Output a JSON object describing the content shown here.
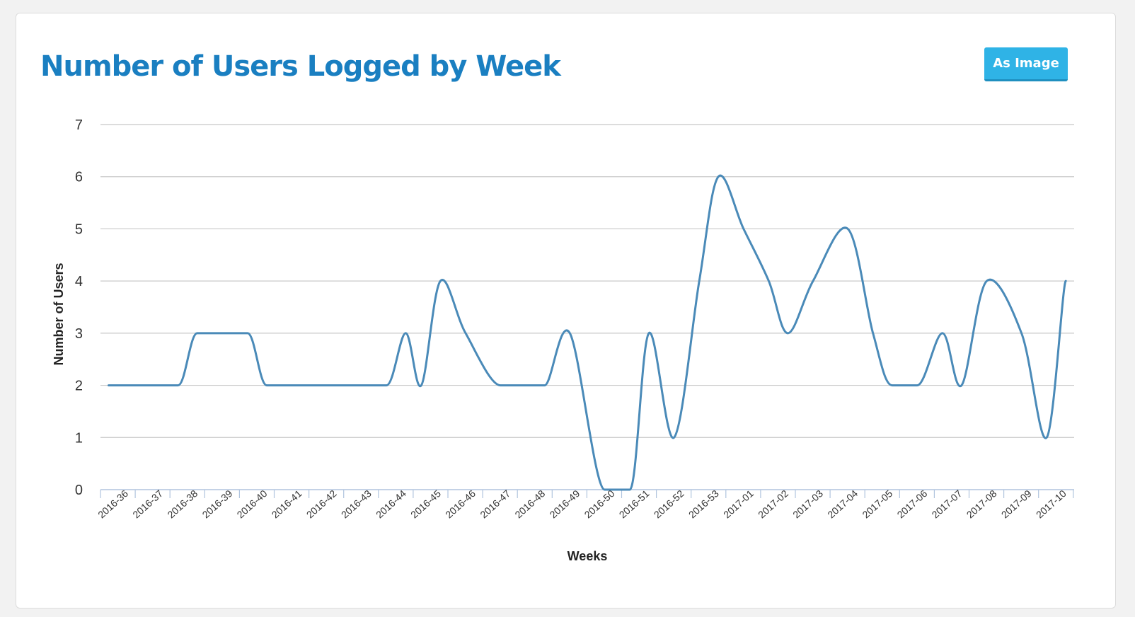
{
  "panel": {
    "title": "Number of Users Logged by Week",
    "button_label": "As Image"
  },
  "colors": {
    "title": "#1a7fc1",
    "button": "#2fb3e6",
    "line": "#4a8ab8",
    "grid": "#c8c8c8",
    "axis": "#b0c4de"
  },
  "chart_data": {
    "type": "line",
    "title": "Number of Users Logged by Week",
    "xlabel": "Weeks",
    "ylabel": "Number of Users",
    "ylim": [
      0,
      7
    ],
    "yticks": [
      0,
      1,
      2,
      3,
      4,
      5,
      6,
      7
    ],
    "grid": true,
    "smooth": true,
    "categories": [
      "2016-36",
      "2016-37",
      "2016-38",
      "2016-39",
      "2016-40",
      "2016-41",
      "2016-42",
      "2016-43",
      "2016-44",
      "2016-45",
      "2016-46",
      "2016-47",
      "2016-48",
      "2016-49",
      "2016-50",
      "2016-51",
      "2016-52",
      "2016-53",
      "2017-01",
      "2017-02",
      "2017-03",
      "2017-04",
      "2017-05",
      "2017-06",
      "2017-07",
      "2017-08",
      "2017-09",
      "2017-10"
    ],
    "x": [
      "2016-36",
      "2016-36",
      "2016-37",
      "2016-38",
      "2016-38",
      "2016-39",
      "2016-40",
      "2016-40",
      "2016-41",
      "2016-42",
      "2016-43",
      "2016-44",
      "2016-44",
      "2016-45",
      "2016-45",
      "2016-46",
      "2016-47",
      "2016-48",
      "2016-48",
      "2016-49",
      "2016-50",
      "2016-51",
      "2016-51",
      "2016-52",
      "2016-53",
      "2016-53",
      "2017-01",
      "2017-02",
      "2017-02",
      "2017-03",
      "2017-04",
      "2017-05",
      "2017-05",
      "2017-06",
      "2017-07",
      "2017-07",
      "2017-08",
      "2017-09",
      "2017-10",
      "2017-10"
    ],
    "series": [
      {
        "values": [
          2,
          2,
          2,
          2,
          3,
          3,
          3,
          2,
          2,
          2,
          2,
          2,
          3,
          2,
          4,
          3,
          2,
          2,
          2,
          3,
          0,
          0,
          3,
          1,
          4,
          6,
          5,
          4,
          3,
          4,
          5,
          3,
          2,
          2,
          3,
          2,
          4,
          3,
          1,
          4
        ]
      }
    ]
  }
}
